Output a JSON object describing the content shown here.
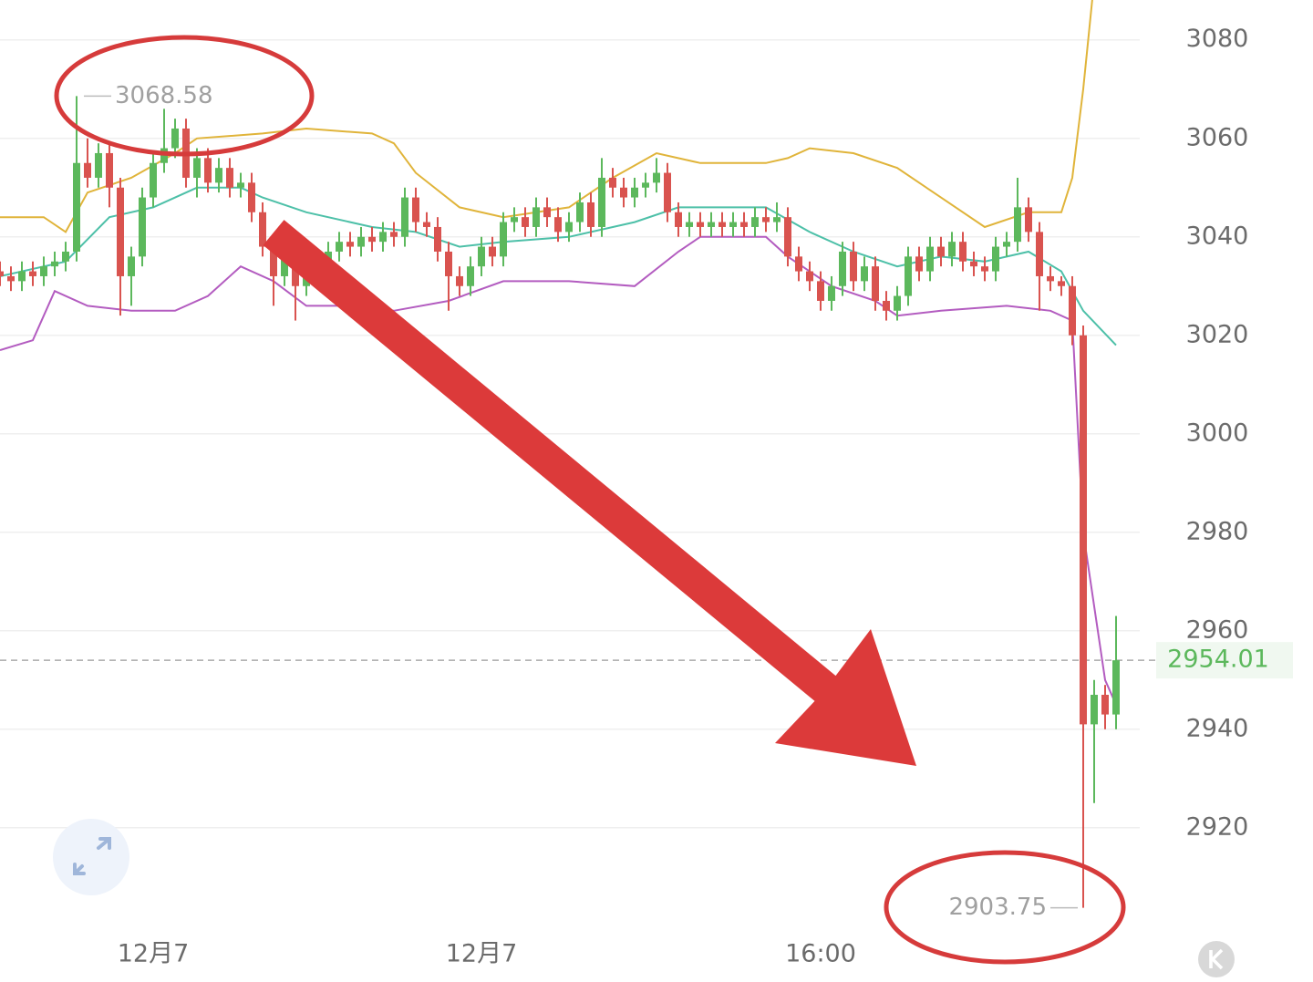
{
  "chart_data": {
    "type": "candlestick",
    "categories": [
      null,
      null,
      null,
      null,
      null,
      null,
      null,
      null,
      null,
      null,
      null,
      null,
      null,
      null,
      "12月7",
      null,
      null,
      null,
      null,
      null,
      null,
      null,
      null,
      null,
      null,
      null,
      null,
      null,
      null,
      null,
      null,
      null,
      null,
      null,
      null,
      null,
      null,
      null,
      null,
      null,
      null,
      null,
      null,
      null,
      "12月7",
      null,
      null,
      null,
      null,
      null,
      null,
      null,
      null,
      null,
      null,
      null,
      null,
      null,
      null,
      null,
      null,
      null,
      null,
      null,
      null,
      null,
      null,
      null,
      null,
      null,
      null,
      null,
      null,
      null,
      null,
      "16:00",
      null,
      null,
      null,
      null,
      null,
      null,
      null,
      null,
      null,
      null,
      null,
      null,
      null,
      null,
      null,
      null,
      null,
      null,
      null,
      null,
      null,
      null,
      null,
      null,
      null,
      null,
      null
    ],
    "open": [
      3033,
      3032,
      3031,
      3033,
      3032,
      3034,
      3035,
      3037,
      3055,
      3052,
      3057,
      3050,
      3032,
      3036,
      3048,
      3055,
      3058,
      3062,
      3052,
      3056,
      3051,
      3054,
      3050,
      3051,
      3045,
      3038,
      3032,
      3036,
      3030,
      3033,
      3032,
      3037,
      3039,
      3038,
      3040,
      3039,
      3041,
      3040,
      3048,
      3043,
      3042,
      3037,
      3032,
      3030,
      3034,
      3038,
      3036,
      3043,
      3044,
      3042,
      3046,
      3044,
      3041,
      3043,
      3047,
      3042,
      3052,
      3050,
      3048,
      3050,
      3051,
      3053,
      3045,
      3042,
      3043,
      3042,
      3043,
      3042,
      3043,
      3042,
      3044,
      3043,
      3044,
      3036,
      3033,
      3031,
      3027,
      3030,
      3037,
      3031,
      3034,
      3027,
      3025,
      3028,
      3036,
      3033,
      3038,
      3036,
      3039,
      3035,
      3034,
      3033,
      3038,
      3039,
      3046,
      3041,
      3032,
      3031,
      3030,
      3020,
      2941,
      2947,
      2943
    ],
    "high": [
      3035,
      3034,
      3035,
      3035,
      3036,
      3037,
      3039,
      3068.58,
      3060,
      3059,
      3059,
      3052,
      3038,
      3050,
      3057,
      3066,
      3064,
      3064,
      3058,
      3058,
      3056,
      3056,
      3053,
      3053,
      3047,
      3040,
      3038,
      3038,
      3035,
      3035,
      3039,
      3041,
      3041,
      3042,
      3042,
      3043,
      3043,
      3050,
      3050,
      3045,
      3044,
      3039,
      3034,
      3036,
      3040,
      3040,
      3045,
      3046,
      3046,
      3048,
      3048,
      3046,
      3045,
      3049,
      3049,
      3056,
      3054,
      3052,
      3052,
      3053,
      3056,
      3055,
      3047,
      3045,
      3045,
      3045,
      3045,
      3045,
      3045,
      3046,
      3046,
      3047,
      3046,
      3038,
      3035,
      3033,
      3032,
      3039,
      3039,
      3036,
      3036,
      3029,
      3030,
      3038,
      3038,
      3040,
      3040,
      3041,
      3041,
      3037,
      3036,
      3040,
      3041,
      3052,
      3048,
      3043,
      3034,
      3032,
      3032,
      3022,
      2950,
      2949,
      2963
    ],
    "low": [
      3030,
      3029,
      3029,
      3030,
      3030,
      3032,
      3033,
      3035,
      3050,
      3050,
      3046,
      3024,
      3026,
      3034,
      3046,
      3053,
      3056,
      3050,
      3048,
      3049,
      3049,
      3048,
      3048,
      3043,
      3036,
      3026,
      3030,
      3023,
      3028,
      3030,
      3030,
      3035,
      3036,
      3036,
      3037,
      3037,
      3038,
      3038,
      3041,
      3040,
      3035,
      3025,
      3028,
      3028,
      3032,
      3034,
      3034,
      3041,
      3040,
      3040,
      3042,
      3039,
      3039,
      3041,
      3040,
      3040,
      3048,
      3046,
      3046,
      3048,
      3049,
      3043,
      3040,
      3040,
      3040,
      3040,
      3040,
      3040,
      3040,
      3040,
      3041,
      3041,
      3034,
      3031,
      3029,
      3025,
      3025,
      3028,
      3029,
      3029,
      3025,
      3023,
      3023,
      3026,
      3031,
      3031,
      3034,
      3034,
      3033,
      3032,
      3031,
      3031,
      3036,
      3037,
      3039,
      3025,
      3029,
      3028,
      3018,
      2903.75,
      2925,
      2940,
      2940
    ],
    "close": [
      3032,
      3031,
      3033,
      3032,
      3034,
      3035,
      3037,
      3055,
      3052,
      3057,
      3050,
      3032,
      3036,
      3048,
      3055,
      3058,
      3062,
      3052,
      3056,
      3051,
      3054,
      3050,
      3051,
      3045,
      3038,
      3032,
      3036,
      3030,
      3033,
      3032,
      3037,
      3039,
      3038,
      3040,
      3039,
      3041,
      3040,
      3048,
      3043,
      3042,
      3037,
      3032,
      3030,
      3034,
      3038,
      3036,
      3043,
      3044,
      3042,
      3046,
      3044,
      3041,
      3043,
      3047,
      3042,
      3052,
      3050,
      3048,
      3050,
      3051,
      3053,
      3045,
      3042,
      3043,
      3042,
      3043,
      3042,
      3043,
      3042,
      3044,
      3043,
      3044,
      3036,
      3033,
      3031,
      3027,
      3030,
      3037,
      3031,
      3034,
      3027,
      3025,
      3028,
      3036,
      3033,
      3038,
      3036,
      3039,
      3035,
      3034,
      3033,
      3038,
      3039,
      3046,
      3041,
      3032,
      3031,
      3030,
      3020,
      2941,
      2947,
      2943,
      2954.01
    ],
    "up_color": "#5cb85c",
    "down_color": "#d9534f",
    "bands": [
      {
        "color": "#e0b43a",
        "x": [
          0,
          4,
          6,
          8,
          12,
          16,
          18,
          24,
          28,
          34,
          36,
          38,
          42,
          46,
          52,
          56,
          60,
          64,
          70,
          72,
          74,
          78,
          82,
          86,
          90,
          94,
          97,
          98,
          99,
          100
        ],
        "values": [
          3044,
          3044,
          3041,
          3049,
          3052,
          3057,
          3060,
          3061,
          3062,
          3061,
          3059,
          3053,
          3046,
          3044,
          3046,
          3052,
          3057,
          3055,
          3055,
          3056,
          3058,
          3057,
          3054,
          3048,
          3042,
          3045,
          3045,
          3052,
          3070,
          3092
        ]
      },
      {
        "color": "#4dc0a8",
        "x": [
          0,
          6,
          10,
          14,
          18,
          22,
          24,
          28,
          34,
          38,
          42,
          46,
          52,
          58,
          62,
          70,
          74,
          78,
          82,
          86,
          90,
          94,
          97,
          99,
          102
        ],
        "values": [
          3032,
          3035,
          3044,
          3046,
          3050,
          3050,
          3048,
          3045,
          3042,
          3041,
          3038,
          3039,
          3040,
          3043,
          3046,
          3046,
          3041,
          3037,
          3034,
          3036,
          3035,
          3037,
          3033,
          3025,
          3018
        ]
      },
      {
        "color": "#b35cc0",
        "x": [
          0,
          3,
          5,
          8,
          12,
          16,
          19,
          22,
          25,
          28,
          32,
          36,
          41,
          46,
          52,
          58,
          62,
          64,
          70,
          72,
          76,
          80,
          82,
          86,
          92,
          96,
          98,
          99,
          101,
          102
        ],
        "values": [
          3017,
          3019,
          3029,
          3026,
          3025,
          3025,
          3028,
          3034,
          3031,
          3026,
          3026,
          3025,
          3027,
          3031,
          3031,
          3030,
          3037,
          3040,
          3040,
          3036,
          3030,
          3027,
          3024,
          3025,
          3026,
          3025,
          3023,
          2980,
          2950,
          2945
        ]
      }
    ],
    "ylim": [
      2898.3,
      3088.1
    ],
    "yticks": [
      2920,
      2940,
      2960,
      2980,
      3000,
      3020,
      3040,
      3060,
      3080
    ],
    "grid": true,
    "annotate_high": 7,
    "annotate_low": 99
  }
}
